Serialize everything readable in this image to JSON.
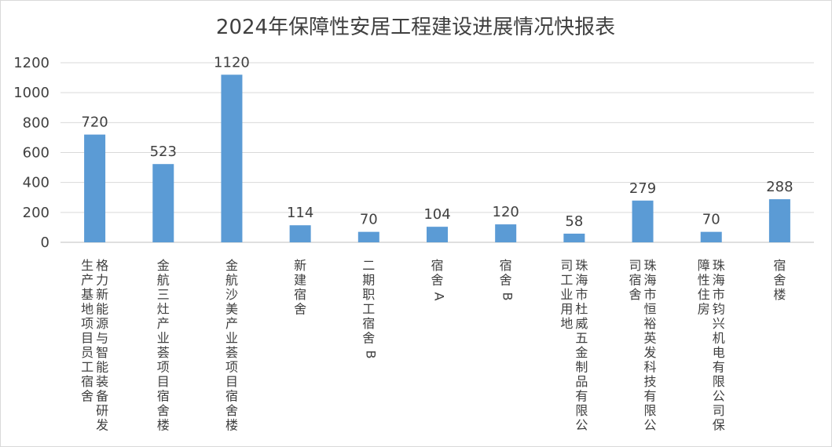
{
  "chart_data": {
    "type": "bar",
    "title": "2024年保障性安居工程建设进展情况快报表",
    "categories": [
      "格力新能源与智能装备研发生产基地项目员工宿舍",
      "金航三灶产业荟项目宿舍楼",
      "金航沙美产业荟项目宿舍楼",
      "新建宿舍",
      "二期职工宿舍B",
      "宿舍A",
      "宿舍B",
      "珠海市杜威五金制品有限公司工业用地",
      "珠海市恒裕英发科技有限公司宿舍",
      "珠海市钧兴机电有限公司保障性住房",
      "宿舍楼"
    ],
    "values": [
      720,
      523,
      1120,
      114,
      70,
      104,
      120,
      58,
      279,
      70,
      288
    ],
    "ylim": [
      0,
      1200
    ],
    "yticks": [
      0,
      200,
      400,
      600,
      800,
      1000,
      1200
    ],
    "grid": true,
    "legend": false,
    "colors": {
      "bar": "#5b9bd5"
    }
  }
}
